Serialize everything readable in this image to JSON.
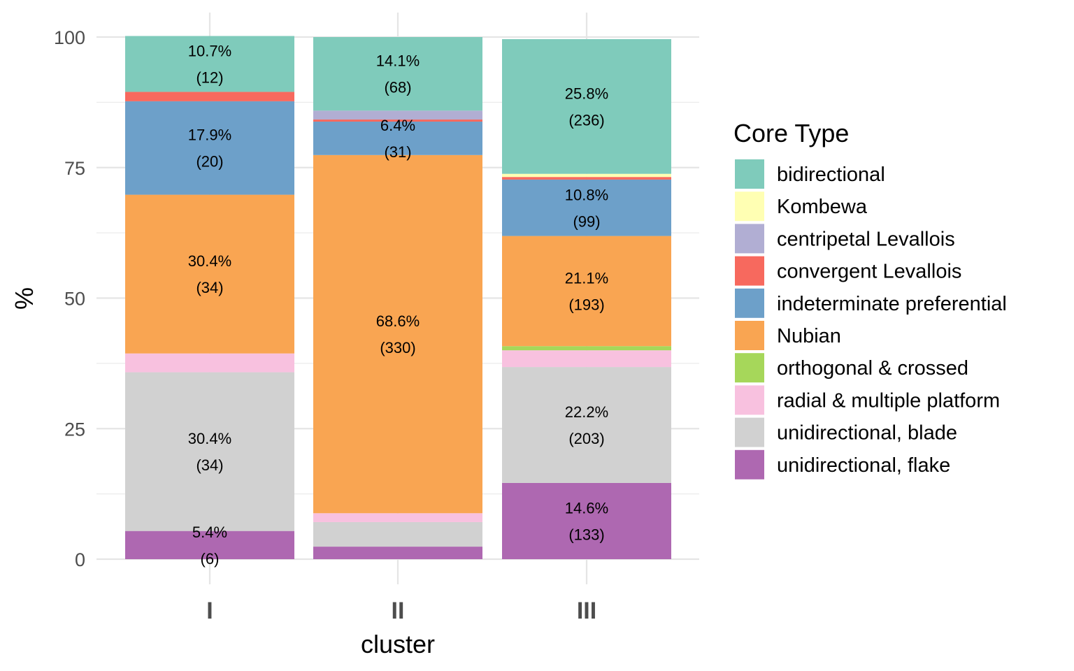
{
  "chart_data": {
    "type": "bar",
    "stacked": true,
    "categories": [
      "I",
      "II",
      "III"
    ],
    "xlabel": "cluster",
    "ylabel": "%",
    "ylim": [
      0,
      100
    ],
    "yticks": [
      0,
      25,
      50,
      75,
      100
    ],
    "grid": true,
    "legend": {
      "title": "Core Type",
      "position": "right"
    },
    "series": [
      {
        "name": "bidirectional",
        "color": "#7fcbbb",
        "values": [
          10.7,
          14.1,
          25.8
        ],
        "labels": [
          [
            "10.7%",
            "(12)"
          ],
          [
            "14.1%",
            "(68)"
          ],
          [
            "25.8%",
            "(236)"
          ]
        ]
      },
      {
        "name": "Kombewa",
        "color": "#ffffb3",
        "values": [
          0,
          0,
          0.6
        ],
        "labels": [
          null,
          null,
          null
        ]
      },
      {
        "name": "centripetal Levallois",
        "color": "#b1aed3",
        "values": [
          0,
          1.7,
          0
        ],
        "labels": [
          null,
          null,
          null
        ]
      },
      {
        "name": "convergent Levallois",
        "color": "#f7695e",
        "values": [
          1.8,
          0.4,
          0.5
        ],
        "labels": [
          null,
          null,
          null
        ]
      },
      {
        "name": "indeterminate preferential",
        "color": "#6da0c9",
        "values": [
          17.9,
          6.4,
          10.8
        ],
        "labels": [
          [
            "17.9%",
            "(20)"
          ],
          [
            "6.4%",
            "(31)"
          ],
          [
            "10.8%",
            "(99)"
          ]
        ]
      },
      {
        "name": "Nubian",
        "color": "#f9a552",
        "values": [
          30.4,
          68.6,
          21.1
        ],
        "labels": [
          [
            "30.4%",
            "(34)"
          ],
          [
            "68.6%",
            "(330)"
          ],
          [
            "21.1%",
            "(193)"
          ]
        ]
      },
      {
        "name": "orthogonal & crossed",
        "color": "#a6d75a",
        "values": [
          0,
          0,
          0.8
        ],
        "labels": [
          null,
          null,
          null
        ]
      },
      {
        "name": "radial & multiple platform",
        "color": "#f8c1df",
        "values": [
          3.6,
          1.7,
          3.2
        ],
        "labels": [
          null,
          null,
          null
        ]
      },
      {
        "name": "unidirectional, blade",
        "color": "#d1d1d1",
        "values": [
          30.4,
          4.7,
          22.2
        ],
        "labels": [
          [
            "30.4%",
            "(34)"
          ],
          null,
          [
            "22.2%",
            "(203)"
          ]
        ]
      },
      {
        "name": "unidirectional, flake",
        "color": "#ae68b1",
        "values": [
          5.4,
          2.4,
          14.6
        ],
        "labels": [
          [
            "5.4%",
            "(6)"
          ],
          null,
          [
            "14.6%",
            "(133)"
          ]
        ]
      }
    ]
  }
}
